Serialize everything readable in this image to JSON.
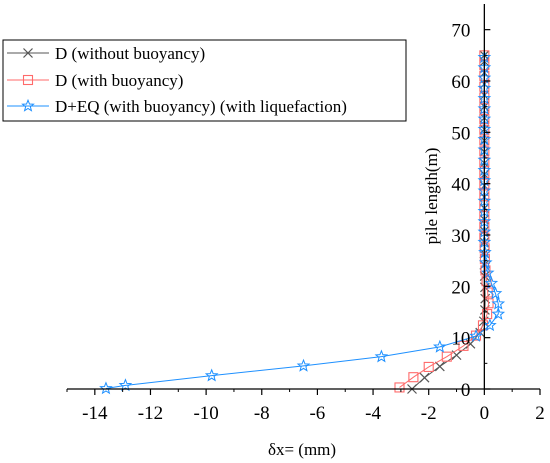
{
  "chart_data": {
    "type": "line",
    "xlabel": "δx= (mm)",
    "ylabel": "pile length(m)",
    "xlim": [
      -15,
      2
    ],
    "ylim": [
      0,
      75
    ],
    "x_ticks": [
      -14,
      -12,
      -10,
      -8,
      -6,
      -4,
      -2,
      0,
      2
    ],
    "y_ticks": [
      0,
      10,
      20,
      30,
      40,
      50,
      60,
      70
    ],
    "legend_placement": "top-left",
    "series": [
      {
        "name": "D (without buoyancy)",
        "color": "#555555",
        "marker": "x",
        "points": [
          [
            -2.6,
            0
          ],
          [
            -2.15,
            2.2
          ],
          [
            -1.6,
            4.4
          ],
          [
            -1.0,
            6.6
          ],
          [
            -0.5,
            8.8
          ],
          [
            -0.15,
            11.0
          ],
          [
            -0.02,
            13.2
          ],
          [
            0.02,
            15.4
          ],
          [
            0.03,
            17.6
          ],
          [
            0.02,
            19.8
          ],
          [
            0.01,
            22.0
          ],
          [
            0.0,
            24.2
          ],
          [
            0.0,
            26.4
          ],
          [
            0.0,
            28.6
          ],
          [
            0.0,
            30.8
          ],
          [
            0.0,
            33.0
          ],
          [
            0.0,
            35.2
          ],
          [
            0.0,
            37.4
          ],
          [
            0.0,
            39.6
          ],
          [
            0.0,
            41.8
          ],
          [
            0.0,
            44.0
          ],
          [
            0.0,
            46.2
          ],
          [
            0.0,
            48.4
          ],
          [
            0.0,
            50.6
          ],
          [
            0.0,
            52.8
          ],
          [
            0.0,
            55.0
          ],
          [
            0.0,
            57.2
          ],
          [
            0.0,
            59.4
          ],
          [
            0.0,
            61.6
          ],
          [
            0.0,
            63.8
          ],
          [
            0.0,
            65.0
          ]
        ]
      },
      {
        "name": "D (with buoyancy)",
        "color": "#ff6a6a",
        "marker": "square",
        "points": [
          [
            -3.05,
            0.3
          ],
          [
            -2.55,
            2.3
          ],
          [
            -2.0,
            4.3
          ],
          [
            -1.35,
            6.3
          ],
          [
            -0.75,
            8.4
          ],
          [
            -0.3,
            10.4
          ],
          [
            -0.05,
            12.4
          ],
          [
            0.1,
            14.6
          ],
          [
            0.15,
            16.7
          ],
          [
            0.12,
            18.8
          ],
          [
            0.08,
            21.0
          ],
          [
            0.04,
            23.1
          ],
          [
            0.02,
            25.3
          ],
          [
            0.01,
            27.4
          ],
          [
            0.0,
            29.5
          ],
          [
            0.0,
            31.6
          ],
          [
            0.0,
            33.7
          ],
          [
            0.0,
            35.8
          ],
          [
            0.0,
            37.9
          ],
          [
            0.0,
            40.0
          ],
          [
            0.0,
            42.1
          ],
          [
            0.0,
            44.2
          ],
          [
            0.0,
            46.3
          ],
          [
            0.0,
            48.4
          ],
          [
            0.0,
            50.5
          ],
          [
            0.0,
            52.6
          ],
          [
            0.0,
            54.7
          ],
          [
            0.0,
            56.8
          ],
          [
            0.0,
            58.9
          ],
          [
            0.0,
            61.0
          ],
          [
            0.0,
            63.1
          ],
          [
            0.0,
            65.0
          ]
        ]
      },
      {
        "name": "D+EQ (with buoyancy) (with liquefaction)",
        "color": "#1e90ff",
        "marker": "star",
        "points": [
          [
            -13.6,
            0.1
          ],
          [
            -12.9,
            0.7
          ],
          [
            -9.8,
            2.6
          ],
          [
            -6.5,
            4.5
          ],
          [
            -3.7,
            6.3
          ],
          [
            -1.6,
            8.2
          ],
          [
            -0.3,
            10.3
          ],
          [
            0.2,
            12.4
          ],
          [
            0.5,
            14.6
          ],
          [
            0.5,
            16.6
          ],
          [
            0.4,
            18.6
          ],
          [
            0.25,
            20.6
          ],
          [
            0.12,
            22.6
          ],
          [
            0.05,
            24.6
          ],
          [
            0.02,
            26.6
          ],
          [
            0.0,
            28.6
          ],
          [
            0.0,
            30.6
          ],
          [
            0.0,
            32.6
          ],
          [
            0.0,
            34.6
          ],
          [
            0.0,
            36.6
          ],
          [
            0.0,
            38.6
          ],
          [
            0.0,
            40.6
          ],
          [
            0.0,
            42.6
          ],
          [
            0.0,
            44.6
          ],
          [
            0.0,
            46.6
          ],
          [
            0.0,
            48.6
          ],
          [
            0.0,
            50.6
          ],
          [
            0.0,
            52.6
          ],
          [
            0.0,
            54.6
          ],
          [
            0.0,
            56.6
          ],
          [
            0.0,
            58.6
          ],
          [
            0.0,
            60.6
          ],
          [
            0.0,
            62.6
          ],
          [
            0.0,
            64.6
          ]
        ]
      }
    ]
  }
}
